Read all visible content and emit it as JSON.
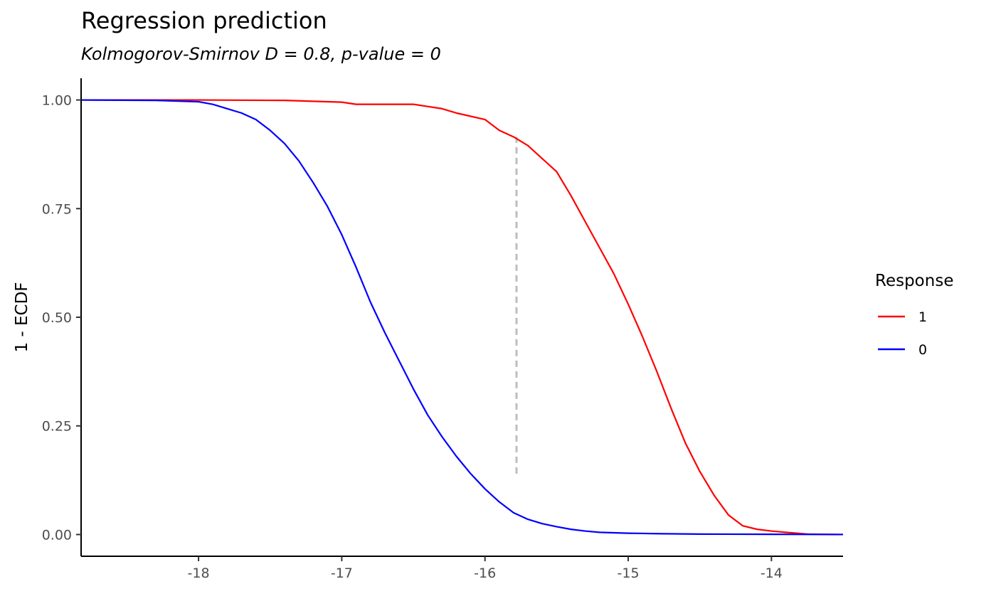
{
  "chart_data": {
    "type": "line",
    "title": "Regression prediction",
    "subtitle": "Kolmogorov-Smirnov D = 0.8, p-value = 0",
    "xlabel": "",
    "ylabel": "1 - ECDF",
    "xlim": [
      -18.82,
      -13.5
    ],
    "ylim": [
      -0.05,
      1.05
    ],
    "x_ticks": [
      -18,
      -17,
      -16,
      -15,
      -14
    ],
    "x_tick_labels": [
      "-18",
      "-17",
      "-16",
      "-15",
      "-14"
    ],
    "y_ticks": [
      0,
      0.25,
      0.5,
      0.75,
      1
    ],
    "y_tick_labels": [
      "0.00",
      "0.25",
      "0.50",
      "0.75",
      "1.00"
    ],
    "grid": false,
    "legend_title": "Response",
    "legend_position": "right",
    "series": [
      {
        "name": "1",
        "color": "#FF0000",
        "x": [
          -18.82,
          -18.0,
          -17.4,
          -17.0,
          -16.9,
          -16.5,
          -16.4,
          -16.3,
          -16.2,
          -16.0,
          -15.9,
          -15.8,
          -15.7,
          -15.6,
          -15.5,
          -15.4,
          -15.3,
          -15.2,
          -15.1,
          -15.0,
          -14.9,
          -14.8,
          -14.7,
          -14.6,
          -14.5,
          -14.4,
          -14.3,
          -14.2,
          -14.1,
          -14.0,
          -13.9,
          -13.75,
          -13.5
        ],
        "y": [
          1.0,
          1.0,
          0.999,
          0.995,
          0.99,
          0.99,
          0.985,
          0.98,
          0.97,
          0.955,
          0.93,
          0.915,
          0.895,
          0.865,
          0.835,
          0.78,
          0.72,
          0.66,
          0.6,
          0.53,
          0.455,
          0.375,
          0.29,
          0.21,
          0.145,
          0.09,
          0.045,
          0.02,
          0.012,
          0.008,
          0.005,
          0.001,
          0.0
        ]
      },
      {
        "name": "0",
        "color": "#0000FF",
        "x": [
          -18.82,
          -18.3,
          -18.0,
          -17.9,
          -17.8,
          -17.7,
          -17.6,
          -17.5,
          -17.4,
          -17.3,
          -17.2,
          -17.1,
          -17.0,
          -16.9,
          -16.8,
          -16.7,
          -16.6,
          -16.5,
          -16.4,
          -16.3,
          -16.2,
          -16.1,
          -16.0,
          -15.9,
          -15.8,
          -15.7,
          -15.6,
          -15.5,
          -15.4,
          -15.3,
          -15.2,
          -15.0,
          -14.8,
          -14.5,
          -14.0,
          -13.5
        ],
        "y": [
          1.0,
          0.999,
          0.996,
          0.99,
          0.98,
          0.97,
          0.955,
          0.93,
          0.9,
          0.86,
          0.81,
          0.755,
          0.69,
          0.615,
          0.535,
          0.465,
          0.4,
          0.335,
          0.275,
          0.225,
          0.18,
          0.14,
          0.105,
          0.075,
          0.05,
          0.035,
          0.025,
          0.018,
          0.012,
          0.008,
          0.005,
          0.003,
          0.002,
          0.001,
          0.0005,
          0.0
        ]
      }
    ],
    "annotations": [
      {
        "type": "vertical-dashed-segment",
        "x": -15.78,
        "y_from": 0.14,
        "y_to": 0.915,
        "color": "#BEBEBE"
      }
    ]
  }
}
